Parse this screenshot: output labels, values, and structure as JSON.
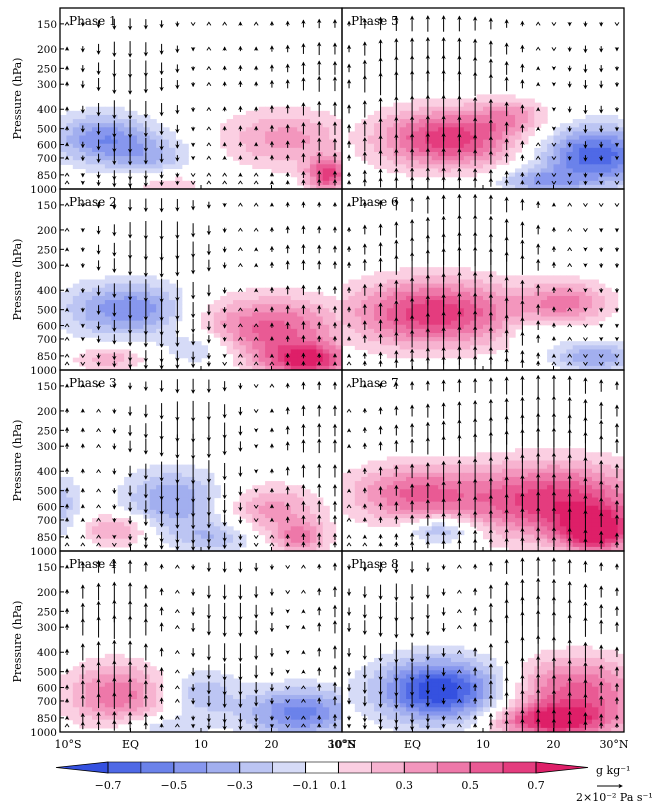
{
  "chart_data": {
    "type": "heatmap",
    "title": "",
    "ylabel": "Pressure (hPa)",
    "xlabel": "",
    "x_ticks": [
      "10°S",
      "EQ",
      "10",
      "20",
      "30°N"
    ],
    "y_ticks": [
      150,
      200,
      250,
      300,
      400,
      500,
      600,
      700,
      850,
      1000
    ],
    "xlim": [
      -10,
      30
    ],
    "ylim": [
      1000,
      125
    ],
    "units": "g kg⁻¹",
    "vector_units": "2×10⁻² Pa s⁻¹",
    "colorbar": {
      "labels": [
        "−0.7",
        "−0.5",
        "−0.3",
        "−0.1",
        "0.1",
        "0.3",
        "0.5",
        "0.7"
      ],
      "levels": [
        -0.7,
        -0.6,
        -0.5,
        -0.4,
        -0.3,
        -0.2,
        -0.1,
        0.1,
        0.2,
        0.3,
        0.4,
        0.5,
        0.6,
        0.7
      ],
      "colors": [
        "#3551e0",
        "#4f69e6",
        "#6b82ea",
        "#8797ee",
        "#a2afef",
        "#bcc5f3",
        "#d6dbf7",
        "#ffffff",
        "#fbcfe2",
        "#f7b3d0",
        "#f396bd",
        "#ee78a9",
        "#e95a94",
        "#e43c7e",
        "#de1f68"
      ]
    },
    "panels": [
      {
        "label": "Phase 1",
        "anomalies": [
          {
            "lat": -4,
            "p": 560,
            "w": 7,
            "h": 2.4,
            "v": -0.35
          },
          {
            "lat": 3,
            "p": 700,
            "w": 6,
            "h": 2.0,
            "v": -0.2
          },
          {
            "lat": 22,
            "p": 560,
            "w": 9,
            "h": 2.8,
            "v": 0.25
          },
          {
            "lat": 28,
            "p": 850,
            "w": 3,
            "h": 1.6,
            "v": 0.45
          },
          {
            "lat": 5,
            "p": 930,
            "w": 6,
            "h": 1.3,
            "v": 0.15
          }
        ],
        "omega": [
          0.3,
          -0.5,
          -0.9,
          -1.3,
          -1.4,
          -1.2,
          -0.9,
          -0.6,
          -0.3,
          0,
          0.3,
          0.4,
          0.3,
          0.5,
          0.6,
          0.9,
          1.1,
          1.0
        ]
      },
      {
        "label": "Phase 2",
        "anomalies": [
          {
            "lat": -5,
            "p": 500,
            "w": 6,
            "h": 2.6,
            "v": -0.2
          },
          {
            "lat": 2,
            "p": 500,
            "w": 6,
            "h": 2.6,
            "v": -0.3
          },
          {
            "lat": 10,
            "p": 780,
            "w": 5,
            "h": 1.6,
            "v": -0.2
          },
          {
            "lat": 20,
            "p": 620,
            "w": 10,
            "h": 3.0,
            "v": 0.4
          },
          {
            "lat": 25,
            "p": 900,
            "w": 6,
            "h": 1.6,
            "v": 0.5
          },
          {
            "lat": -3,
            "p": 880,
            "w": 5,
            "h": 1.2,
            "v": 0.2
          }
        ],
        "omega": [
          0.2,
          -0.3,
          -0.7,
          -1.0,
          -1.4,
          -1.6,
          -1.7,
          -1.5,
          -1.2,
          -0.8,
          -0.4,
          0,
          0.2,
          0.4,
          0.6,
          0.7,
          0.6,
          0.5
        ]
      },
      {
        "label": "Phase 3",
        "anomalies": [
          {
            "lat": 6,
            "p": 560,
            "w": 7,
            "h": 3.0,
            "v": -0.3
          },
          {
            "lat": 12,
            "p": 850,
            "w": 6,
            "h": 1.6,
            "v": -0.2
          },
          {
            "lat": -10,
            "p": 600,
            "w": 3,
            "h": 3.0,
            "v": -0.2
          },
          {
            "lat": -2,
            "p": 780,
            "w": 5,
            "h": 1.6,
            "v": 0.25
          },
          {
            "lat": 20,
            "p": 620,
            "w": 7,
            "h": 2.4,
            "v": 0.25
          },
          {
            "lat": 24,
            "p": 860,
            "w": 4,
            "h": 1.5,
            "v": 0.3
          }
        ],
        "omega": [
          0.4,
          0.3,
          0,
          -0.4,
          -0.8,
          -1.1,
          -1.4,
          -1.7,
          -1.8,
          -1.6,
          -1.2,
          -0.7,
          -0.2,
          0.3,
          0.6,
          0.9,
          1.0,
          0.9
        ]
      },
      {
        "label": "Phase 4",
        "anomalies": [
          {
            "lat": -2,
            "p": 650,
            "w": 7,
            "h": 3.0,
            "v": 0.35
          },
          {
            "lat": 10,
            "p": 640,
            "w": 5,
            "h": 2.4,
            "v": -0.2
          },
          {
            "lat": 24,
            "p": 800,
            "w": 8,
            "h": 2.4,
            "v": -0.4
          },
          {
            "lat": 4,
            "p": 950,
            "w": 6,
            "h": 1.2,
            "v": -0.15
          }
        ],
        "omega": [
          0.4,
          1.2,
          1.5,
          1.7,
          1.6,
          1.2,
          0.6,
          0,
          -0.6,
          -1.1,
          -1.3,
          -1.3,
          -1.0,
          -0.6,
          -0.2,
          0.2,
          0.6,
          0.9
        ]
      },
      {
        "label": "Phase 5",
        "anomalies": [
          {
            "lat": 5,
            "p": 560,
            "w": 10,
            "h": 2.8,
            "v": 0.5
          },
          {
            "lat": 26,
            "p": 680,
            "w": 8,
            "h": 2.8,
            "v": -0.5
          },
          {
            "lat": 18,
            "p": 920,
            "w": 6,
            "h": 1.2,
            "v": -0.25
          },
          {
            "lat": 14,
            "p": 430,
            "w": 5,
            "h": 1.6,
            "v": 0.2
          }
        ],
        "omega": [
          0.6,
          1.2,
          1.6,
          1.8,
          1.9,
          2.0,
          2.0,
          1.9,
          1.7,
          1.4,
          1.0,
          0.6,
          0.2,
          -0.2,
          -0.4,
          -0.6,
          -0.5,
          -0.3
        ]
      },
      {
        "label": "Phase 6",
        "anomalies": [
          {
            "lat": 3,
            "p": 520,
            "w": 12,
            "h": 3.2,
            "v": 0.5
          },
          {
            "lat": 22,
            "p": 460,
            "w": 6,
            "h": 2.0,
            "v": 0.3
          },
          {
            "lat": 26,
            "p": 860,
            "w": 6,
            "h": 1.4,
            "v": -0.3
          },
          {
            "lat": 18,
            "p": 650,
            "w": 4,
            "h": 1.2,
            "v": -0.15
          }
        ],
        "omega": [
          0.4,
          0.8,
          1.0,
          1.4,
          1.8,
          2.2,
          2.4,
          2.6,
          2.6,
          2.4,
          1.9,
          1.4,
          0.8,
          0.4,
          0,
          -0.2,
          -0.3,
          -0.3
        ]
      },
      {
        "label": "Phase 7",
        "anomalies": [
          {
            "lat": 0,
            "p": 520,
            "w": 9,
            "h": 2.8,
            "v": 0.35
          },
          {
            "lat": 20,
            "p": 560,
            "w": 13,
            "h": 3.6,
            "v": 0.5
          },
          {
            "lat": 4,
            "p": 780,
            "w": 5,
            "h": 1.3,
            "v": -0.3
          },
          {
            "lat": 26,
            "p": 800,
            "w": 5,
            "h": 2.0,
            "v": 0.55
          }
        ],
        "omega": [
          0.2,
          0.4,
          0.6,
          0.8,
          1.0,
          1.2,
          1.4,
          1.6,
          1.8,
          2.0,
          2.2,
          2.4,
          2.6,
          2.6,
          2.4,
          2.0,
          1.5,
          1.0
        ]
      },
      {
        "label": "Phase 8",
        "anomalies": [
          {
            "lat": 4,
            "p": 620,
            "w": 9,
            "h": 3.0,
            "v": -0.6
          },
          {
            "lat": 23,
            "p": 620,
            "w": 10,
            "h": 3.2,
            "v": 0.4
          },
          {
            "lat": 20,
            "p": 880,
            "w": 8,
            "h": 1.6,
            "v": 0.5
          }
        ],
        "omega": [
          -0.6,
          -1.0,
          -1.3,
          -1.5,
          -1.4,
          -1.1,
          -0.6,
          0,
          0.6,
          1.2,
          1.8,
          2.2,
          2.4,
          2.2,
          1.8,
          1.4,
          1.0,
          0.7
        ]
      }
    ]
  }
}
